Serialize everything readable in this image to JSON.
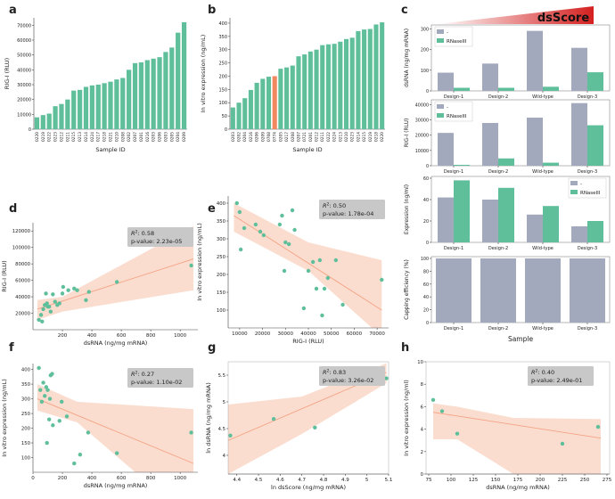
{
  "colors": {
    "teal": "#5fbf9a",
    "highlight": "#f0875f",
    "grey": "#a3a9bd",
    "fit": "#f4a384",
    "band": "#fad7c8",
    "statbox": "#c8c8c8",
    "axis": "#444444",
    "ramp_start": "#ffffff",
    "ramp_end": "#d42020"
  },
  "chart_data": [
    {
      "panel": "a",
      "type": "bar",
      "xlabel": "Sample ID",
      "ylabel": "RIG-I (RLU)",
      "ylim": [
        0,
        75000
      ],
      "yticks": [
        0,
        10000,
        20000,
        30000,
        40000,
        50000,
        60000,
        70000
      ],
      "categories": [
        "0220",
        "0219",
        "0222",
        "0223",
        "0212",
        "0211",
        "0215",
        "0213",
        "0214",
        "0224",
        "0217",
        "0218",
        "0221",
        "0210",
        "0208",
        "0202",
        "0207",
        "0201",
        "0216",
        "0203",
        "0206",
        "0203",
        "0205",
        "0204",
        "0209"
      ],
      "values": [
        8000,
        9500,
        10500,
        15500,
        17000,
        20000,
        26000,
        26500,
        28500,
        29500,
        30000,
        31000,
        32000,
        33500,
        34500,
        40000,
        44500,
        45000,
        46500,
        47500,
        48500,
        52000,
        55000,
        65000,
        72000
      ]
    },
    {
      "panel": "b",
      "type": "bar",
      "xlabel": "Sample ID",
      "ylabel": "In vitro expression (ng/mL)",
      "ylim": [
        0,
        420
      ],
      "yticks": [
        0,
        50,
        100,
        150,
        200,
        250,
        300,
        350,
        400
      ],
      "categories": [
        "0203",
        "0202",
        "0204",
        "0216",
        "0206",
        "0209",
        "0708",
        "0774",
        "0205",
        "0217",
        "0208",
        "0207",
        "0721",
        "0201",
        "0212",
        "0211",
        "0222",
        "0224",
        "0213",
        "0210",
        "0223",
        "0214",
        "0215",
        "0219",
        "0218",
        "0220"
      ],
      "values": [
        82,
        100,
        117,
        148,
        175,
        190,
        198,
        200,
        228,
        233,
        240,
        275,
        282,
        293,
        300,
        317,
        320,
        322,
        330,
        340,
        345,
        370,
        376,
        378,
        395,
        403
      ],
      "highlight_index": 7
    },
    {
      "panel": "c",
      "type": "bar",
      "title": "dsScore",
      "xlabel": "Sample",
      "categories": [
        "Design-1",
        "Design-2",
        "Wild-type",
        "Design-3"
      ],
      "legend": [
        "-",
        "RNaseIII"
      ],
      "subplots": [
        {
          "ylabel": "dsRNA (ng/mg mRNA)",
          "ylim": [
            0,
            310
          ],
          "series": [
            {
              "name": "-",
              "values": [
                88,
                132,
                290,
                208
              ]
            },
            {
              "name": "RNaseIII",
              "values": [
                15,
                15,
                20,
                90
              ]
            }
          ]
        },
        {
          "ylabel": "RIG-I (RLU)",
          "ylim": [
            0,
            42000
          ],
          "series": [
            {
              "name": "-",
              "values": [
                21500,
                28000,
                31500,
                41000
              ]
            },
            {
              "name": "RNaseIII",
              "values": [
                600,
                4800,
                2000,
                26500
              ]
            }
          ]
        },
        {
          "ylabel": "Expression (ng/ml)",
          "ylim": [
            0,
            60
          ],
          "series": [
            {
              "name": "-",
              "values": [
                42,
                40,
                26,
                15
              ]
            },
            {
              "name": "RNaseIII",
              "values": [
                58,
                51,
                34,
                20
              ]
            }
          ]
        },
        {
          "ylabel": "Capping efficiency (%)",
          "ylim": [
            0,
            100
          ],
          "series": [
            {
              "name": "-",
              "values": [
                100,
                100,
                100,
                100
              ]
            }
          ]
        }
      ]
    },
    {
      "panel": "d",
      "type": "scatter",
      "xlabel": "dsRNA (ng/mg mRNA)",
      "ylabel": "RIG-I (RLU)",
      "xlim": [
        0,
        1120
      ],
      "ylim": [
        0,
        130000
      ],
      "xticks": [
        200,
        400,
        600,
        800,
        1000
      ],
      "yticks": [
        20000,
        40000,
        60000,
        80000,
        100000,
        120000
      ],
      "stats": {
        "r2": "0.58",
        "pvalue": "2.23e-05"
      },
      "x": [
        40,
        55,
        62,
        70,
        80,
        88,
        95,
        100,
        110,
        120,
        135,
        150,
        165,
        180,
        200,
        205,
        240,
        280,
        300,
        360,
        380,
        570,
        1075
      ],
      "y": [
        12000,
        18000,
        10000,
        25000,
        30000,
        44000,
        32000,
        28000,
        28000,
        22000,
        43000,
        34000,
        30000,
        32000,
        44000,
        52000,
        48000,
        50000,
        48000,
        36000,
        46000,
        58000,
        78000
      ],
      "fit": {
        "x": [
          30,
          1090
        ],
        "y": [
          25000,
          86000
        ]
      },
      "band": {
        "x": [
          30,
          200,
          1090
        ],
        "upper": [
          36000,
          40000,
          126000
        ],
        "lower": [
          12000,
          22000,
          48000
        ]
      }
    },
    {
      "panel": "e",
      "type": "scatter",
      "xlabel": "RIG-I (RLU)",
      "ylabel": "In vitro expression (ng/mL)",
      "xlim": [
        5000,
        75000
      ],
      "ylim": [
        50,
        420
      ],
      "xticks": [
        10000,
        20000,
        30000,
        40000,
        50000,
        60000,
        70000
      ],
      "yticks": [
        100,
        150,
        200,
        250,
        300,
        350,
        400
      ],
      "stats": {
        "r2": "0.50",
        "pvalue": "1.78e-04"
      },
      "x": [
        8800,
        10000,
        10500,
        12000,
        17000,
        19000,
        20500,
        27500,
        28500,
        29500,
        30000,
        31500,
        33000,
        34000,
        38000,
        40000,
        42000,
        43500,
        45000,
        46000,
        47000,
        48500,
        52000,
        55000,
        72000
      ],
      "y": [
        400,
        375,
        270,
        330,
        340,
        320,
        310,
        340,
        365,
        210,
        290,
        285,
        380,
        325,
        105,
        210,
        235,
        160,
        240,
        85,
        160,
        190,
        240,
        115,
        185
      ],
      "fit": {
        "x": [
          7500,
          72000
        ],
        "y": [
          365,
          100
        ]
      },
      "band": {
        "x": [
          7500,
          40000,
          72000
        ],
        "upper": [
          400,
          290,
          240
        ],
        "lower": [
          320,
          210,
          25
        ]
      }
    },
    {
      "panel": "f",
      "type": "scatter",
      "xlabel": "dsRNA (ng/mg mRNA)",
      "ylabel": "In vitro expression (ng/mL)",
      "xlim": [
        0,
        1120
      ],
      "ylim": [
        50,
        420
      ],
      "xticks": [
        0,
        200,
        400,
        600,
        800,
        1000
      ],
      "yticks": [
        100,
        150,
        200,
        250,
        300,
        350,
        400
      ],
      "stats": {
        "r2": "0.27",
        "pvalue": "1.10e-02"
      },
      "x": [
        40,
        50,
        60,
        70,
        80,
        90,
        95,
        100,
        110,
        115,
        120,
        130,
        135,
        180,
        195,
        230,
        280,
        320,
        375,
        570,
        1075
      ],
      "y": [
        405,
        330,
        290,
        355,
        310,
        340,
        150,
        330,
        230,
        300,
        380,
        385,
        210,
        225,
        290,
        240,
        80,
        110,
        185,
        115,
        185
      ],
      "fit": {
        "x": [
          30,
          1090
        ],
        "y": [
          300,
          80
        ]
      },
      "band": {
        "x": [
          30,
          300,
          1090
        ],
        "upper": [
          350,
          290,
          265
        ],
        "lower": [
          260,
          220,
          -120
        ]
      }
    },
    {
      "panel": "g",
      "type": "scatter",
      "xlabel": "ln dsScore (ng/mg mRNA)",
      "ylabel": "ln dsRNA (ng/mg mRNA)",
      "xlim": [
        4.36,
        5.1
      ],
      "ylim": [
        3.65,
        5.75
      ],
      "xticks": [
        4.4,
        4.5,
        4.6,
        4.7,
        4.8,
        4.9,
        5.0,
        5.1
      ],
      "yticks": [
        4.0,
        4.5,
        5.0,
        5.5
      ],
      "stats": {
        "r2": "0.83",
        "pvalue": "3.26e-02"
      },
      "x": [
        4.37,
        4.57,
        4.76,
        5.02,
        5.09
      ],
      "y": [
        4.37,
        4.68,
        4.52,
        5.56,
        5.44
      ],
      "fit": {
        "x": [
          4.36,
          5.09
        ],
        "y": [
          4.28,
          5.55
        ]
      },
      "band": {
        "x": [
          4.36,
          4.7,
          5.09
        ],
        "upper": [
          4.95,
          5.1,
          5.72
        ],
        "lower": [
          3.65,
          4.4,
          5.35
        ]
      }
    },
    {
      "panel": "h",
      "type": "scatter",
      "xlabel": "dsRNA (ng/mg mRNA)",
      "ylabel": "In vitro expression (ng/ml)",
      "xlim": [
        72,
        278
      ],
      "ylim": [
        0,
        10
      ],
      "xticks": [
        75,
        100,
        125,
        150,
        175,
        200,
        225,
        250,
        275
      ],
      "yticks": [
        0,
        2,
        4,
        6,
        8,
        10
      ],
      "stats": {
        "r2": "0.40",
        "pvalue": "2.49e-01"
      },
      "x": [
        80,
        90,
        107,
        225,
        265
      ],
      "y": [
        6.6,
        5.6,
        3.6,
        2.7,
        4.2
      ],
      "fit": {
        "x": [
          80,
          268
        ],
        "y": [
          5.5,
          3.2
        ]
      },
      "band": {
        "x": [
          80,
          107,
          170,
          268
        ],
        "upper": [
          6.3,
          6.0,
          5.0,
          4.9
        ],
        "lower": [
          3.1,
          3.1,
          0,
          0
        ]
      }
    }
  ]
}
